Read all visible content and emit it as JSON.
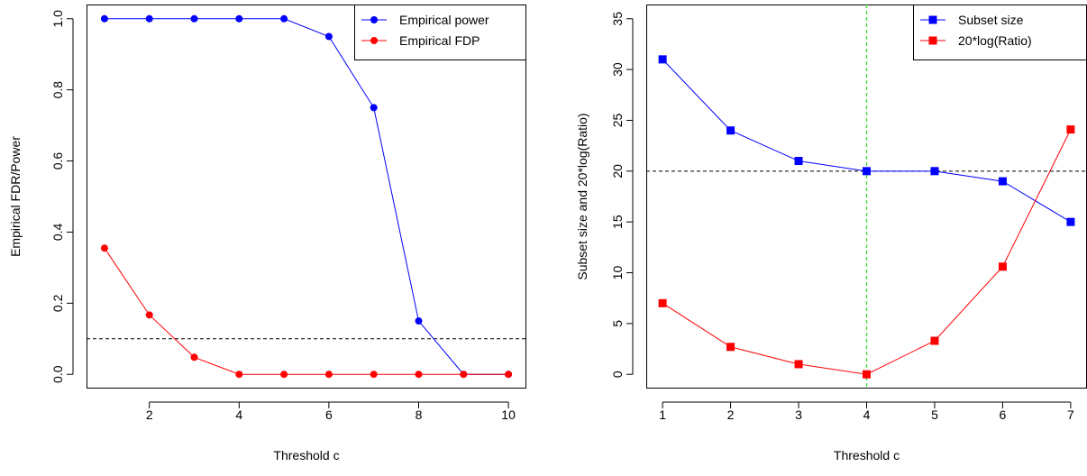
{
  "chart_data": [
    {
      "type": "line",
      "title": "",
      "xlabel": "Threshold c",
      "ylabel": "Empirical FDR/Power",
      "xlim": [
        0.6,
        10.4
      ],
      "ylim": [
        -0.04,
        1.04
      ],
      "xticks": [
        2,
        4,
        6,
        8,
        10
      ],
      "yticks": [
        0.0,
        0.2,
        0.4,
        0.6,
        0.8,
        1.0
      ],
      "xtick_labels": [
        "2",
        "4",
        "6",
        "8",
        "10"
      ],
      "ytick_labels": [
        "0.0",
        "0.2",
        "0.4",
        "0.6",
        "0.8",
        "1.0"
      ],
      "hline": 0.1,
      "grid": false,
      "legend_position": "top-right",
      "marker": "circle",
      "x": [
        1,
        2,
        3,
        4,
        5,
        6,
        7,
        8,
        9,
        10
      ],
      "series": [
        {
          "name": "Empirical power",
          "color": "#0000FF",
          "values": [
            1.0,
            1.0,
            1.0,
            1.0,
            1.0,
            0.95,
            0.75,
            0.15,
            0.0,
            0.0
          ]
        },
        {
          "name": "Empirical FDP",
          "color": "#FF0000",
          "values": [
            0.355,
            0.167,
            0.048,
            0.0,
            0.0,
            0.0,
            0.0,
            0.0,
            0.0,
            0.0
          ]
        }
      ]
    },
    {
      "type": "line",
      "title": "",
      "xlabel": "Threshold c",
      "ylabel": "Subset size and 20*log(Ratio)",
      "xlim": [
        0.76,
        7.24
      ],
      "ylim": [
        -1.4,
        36.4
      ],
      "xticks": [
        1,
        2,
        3,
        4,
        5,
        6,
        7
      ],
      "yticks": [
        0,
        5,
        10,
        15,
        20,
        25,
        30,
        35
      ],
      "xtick_labels": [
        "1",
        "2",
        "3",
        "4",
        "5",
        "6",
        "7"
      ],
      "ytick_labels": [
        "0",
        "5",
        "10",
        "15",
        "20",
        "25",
        "30",
        "35"
      ],
      "hline": 20,
      "vline": 4,
      "grid": false,
      "legend_position": "top-right",
      "marker": "square",
      "x": [
        1,
        2,
        3,
        4,
        5,
        6,
        7
      ],
      "series": [
        {
          "name": "Subset size",
          "color": "#0000FF",
          "values": [
            31,
            24,
            21,
            20,
            20,
            19,
            15
          ]
        },
        {
          "name": "20*log(Ratio)",
          "color": "#FF0000",
          "values": [
            7.0,
            2.7,
            1.0,
            0.0,
            3.3,
            10.6,
            24.1
          ]
        }
      ]
    }
  ]
}
